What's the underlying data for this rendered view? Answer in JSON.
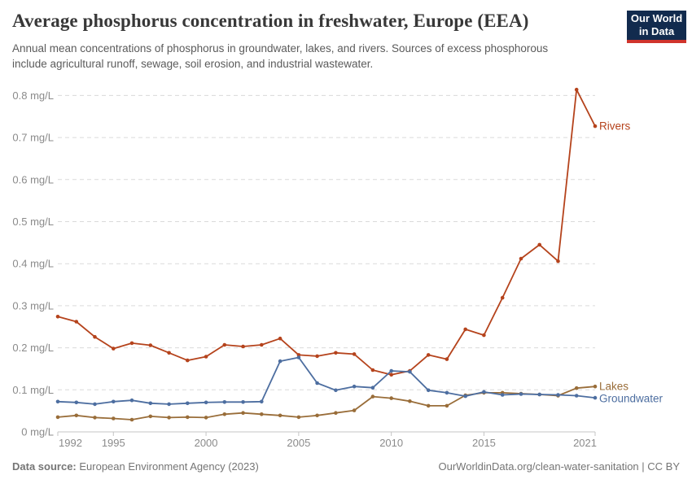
{
  "header": {
    "title": "Average phosphorus concentration in freshwater, Europe (EEA)",
    "subtitle_line1": "Annual mean concentrations of phosphorus in groundwater, lakes, and rivers. Sources of excess phosphorous",
    "subtitle_line2": "include agricultural runoff, sewage, soil erosion, and industrial wastewater.",
    "logo": {
      "line1": "Our World",
      "line2": "in Data"
    }
  },
  "footer": {
    "source_label": "Data source:",
    "source_text": " European Environment Agency (2023)",
    "right_text": "OurWorldinData.org/clean-water-sanitation | CC BY"
  },
  "chart_data": {
    "type": "line",
    "title": "Average phosphorus concentration in freshwater, Europe (EEA)",
    "unit": "mg/L",
    "x": [
      1992,
      1993,
      1994,
      1995,
      1996,
      1997,
      1998,
      1999,
      2000,
      2001,
      2002,
      2003,
      2004,
      2005,
      2006,
      2007,
      2008,
      2009,
      2010,
      2011,
      2012,
      2013,
      2014,
      2015,
      2016,
      2017,
      2018,
      2019,
      2020,
      2021
    ],
    "series": [
      {
        "name": "Rivers",
        "color": "#B5431C",
        "values": [
          0.274,
          0.262,
          0.226,
          0.198,
          0.211,
          0.206,
          0.188,
          0.17,
          0.179,
          0.207,
          0.203,
          0.207,
          0.222,
          0.183,
          0.18,
          0.188,
          0.185,
          0.147,
          0.136,
          0.145,
          0.183,
          0.173,
          0.244,
          0.23,
          0.319,
          0.412,
          0.445,
          0.406,
          0.814,
          0.727
        ]
      },
      {
        "name": "Lakes",
        "color": "#996D39",
        "values": [
          0.035,
          0.039,
          0.034,
          0.032,
          0.029,
          0.037,
          0.034,
          0.035,
          0.034,
          0.042,
          0.045,
          0.042,
          0.039,
          0.035,
          0.039,
          0.045,
          0.051,
          0.084,
          0.08,
          0.073,
          0.062,
          0.062,
          0.087,
          0.093,
          0.093,
          0.091,
          0.089,
          0.086,
          0.104,
          0.108
        ]
      },
      {
        "name": "Groundwater",
        "color": "#4D6EA0",
        "values": [
          0.072,
          0.07,
          0.066,
          0.072,
          0.075,
          0.068,
          0.066,
          0.068,
          0.07,
          0.071,
          0.071,
          0.072,
          0.168,
          0.177,
          0.116,
          0.099,
          0.108,
          0.105,
          0.145,
          0.143,
          0.099,
          0.093,
          0.085,
          0.095,
          0.088,
          0.09,
          0.089,
          0.088,
          0.086,
          0.081
        ]
      }
    ],
    "xlim": [
      1992,
      2021
    ],
    "ylim": [
      0,
      0.85
    ],
    "x_ticks": [
      1992,
      1995,
      2000,
      2005,
      2010,
      2015,
      2021
    ],
    "y_ticks": [
      {
        "v": 0,
        "label": "0 mg/L"
      },
      {
        "v": 0.1,
        "label": "0.1 mg/L"
      },
      {
        "v": 0.2,
        "label": "0.2 mg/L"
      },
      {
        "v": 0.3,
        "label": "0.3 mg/L"
      },
      {
        "v": 0.4,
        "label": "0.4 mg/L"
      },
      {
        "v": 0.5,
        "label": "0.5 mg/L"
      },
      {
        "v": 0.6,
        "label": "0.6 mg/L"
      },
      {
        "v": 0.7,
        "label": "0.7 mg/L"
      },
      {
        "v": 0.8,
        "label": "0.8 mg/L"
      }
    ],
    "grid": "horizontal-dashed",
    "legend_position": "line-end-labels"
  }
}
